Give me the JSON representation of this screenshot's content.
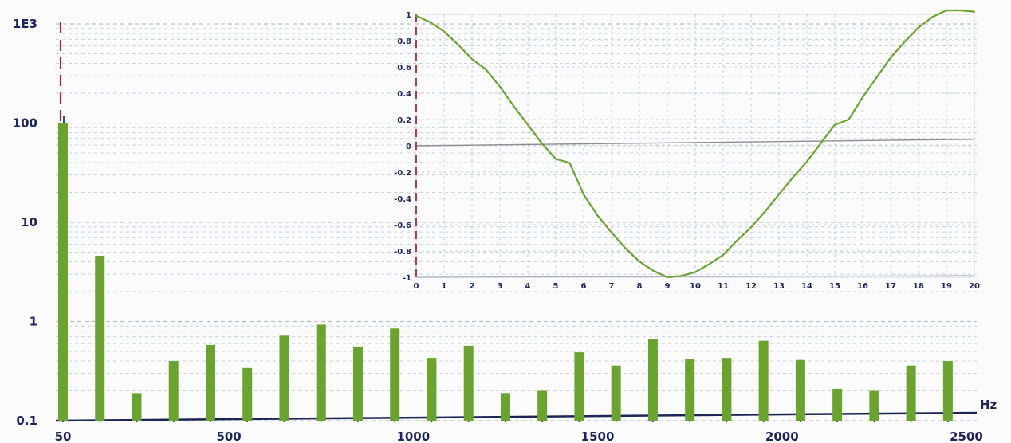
{
  "chart_data": [
    {
      "type": "bar",
      "title": "",
      "xlabel": "",
      "ylabel": "",
      "x_unit_label": "Hz",
      "y_scale": "log",
      "ylim": [
        0.1,
        1000
      ],
      "xlim": [
        0,
        2500
      ],
      "x_tick_labels": [
        {
          "value": 50,
          "label": "50"
        },
        {
          "value": 500,
          "label": "500"
        },
        {
          "value": 1000,
          "label": "1000"
        },
        {
          "value": 1500,
          "label": "1500"
        },
        {
          "value": 2000,
          "label": "2000"
        },
        {
          "value": 2500,
          "label": "2500"
        }
      ],
      "y_tick_labels": [
        {
          "value": 0.1,
          "label": "0.1"
        },
        {
          "value": 1,
          "label": "1"
        },
        {
          "value": 10,
          "label": "10"
        },
        {
          "value": 100,
          "label": "100"
        },
        {
          "value": 1000,
          "label": "1E3"
        }
      ],
      "grid": true,
      "marker_line": {
        "x": 50
      },
      "x": [
        50,
        150,
        250,
        350,
        450,
        550,
        650,
        750,
        850,
        950,
        1050,
        1150,
        1250,
        1350,
        1450,
        1550,
        1650,
        1750,
        1850,
        1950,
        2050,
        2150,
        2250,
        2350,
        2450
      ],
      "values": [
        100,
        4.6,
        0.19,
        0.4,
        0.58,
        0.34,
        0.72,
        0.93,
        0.56,
        0.85,
        0.43,
        0.57,
        0.19,
        0.2,
        0.49,
        0.36,
        0.67,
        0.42,
        0.43,
        0.64,
        0.41,
        0.21,
        0.2,
        0.36,
        0.4
      ],
      "colors": {
        "bar": "#6aa330",
        "marker": "#9c2a3a",
        "marker_dash": "#2854a8",
        "grid": "#c9cfdc",
        "axis": "#1d2458"
      }
    },
    {
      "type": "line",
      "title": "",
      "xlabel": "",
      "ylabel": "",
      "xlim": [
        0,
        20
      ],
      "ylim": [
        -1,
        1
      ],
      "x_tick_labels": [
        "0",
        "1",
        "2",
        "3",
        "4",
        "5",
        "6",
        "7",
        "8",
        "9",
        "10",
        "11",
        "12",
        "13",
        "14",
        "15",
        "16",
        "17",
        "18",
        "19",
        "20"
      ],
      "y_tick_labels": [
        "1",
        "0.8",
        "0.6",
        "0.4",
        "0.2",
        "0",
        "-0.2",
        "-0.4",
        "-0.6",
        "-0.8",
        "-1"
      ],
      "grid": true,
      "legend": "none",
      "x": [
        0,
        0.5,
        1,
        1.5,
        2,
        2.5,
        3,
        3.5,
        4,
        4.5,
        5,
        5.5,
        6,
        6.5,
        7,
        7.5,
        8,
        8.5,
        9,
        9.5,
        10,
        10.5,
        11,
        11.5,
        12,
        12.5,
        13,
        13.5,
        14,
        14.5,
        15,
        15.5,
        16,
        16.5,
        17,
        17.5,
        18,
        18.5,
        19,
        19.5,
        20
      ],
      "y": [
        0.99,
        0.94,
        0.87,
        0.77,
        0.66,
        0.58,
        0.45,
        0.3,
        0.16,
        0.02,
        -0.1,
        -0.13,
        -0.37,
        -0.53,
        -0.66,
        -0.78,
        -0.88,
        -0.95,
        -1,
        -0.99,
        -0.96,
        -0.9,
        -0.83,
        -0.72,
        -0.62,
        -0.5,
        -0.37,
        -0.24,
        -0.12,
        0.02,
        0.16,
        0.2,
        0.37,
        0.52,
        0.67,
        0.79,
        0.9,
        0.98,
        1.03,
        1.03,
        1.02
      ],
      "colors": {
        "line": "#6aa330",
        "zero_line": "#8d8d8d",
        "grid": "#c7ccd8",
        "axis": "#1d2458",
        "marker": "#9c2a3a"
      }
    }
  ]
}
